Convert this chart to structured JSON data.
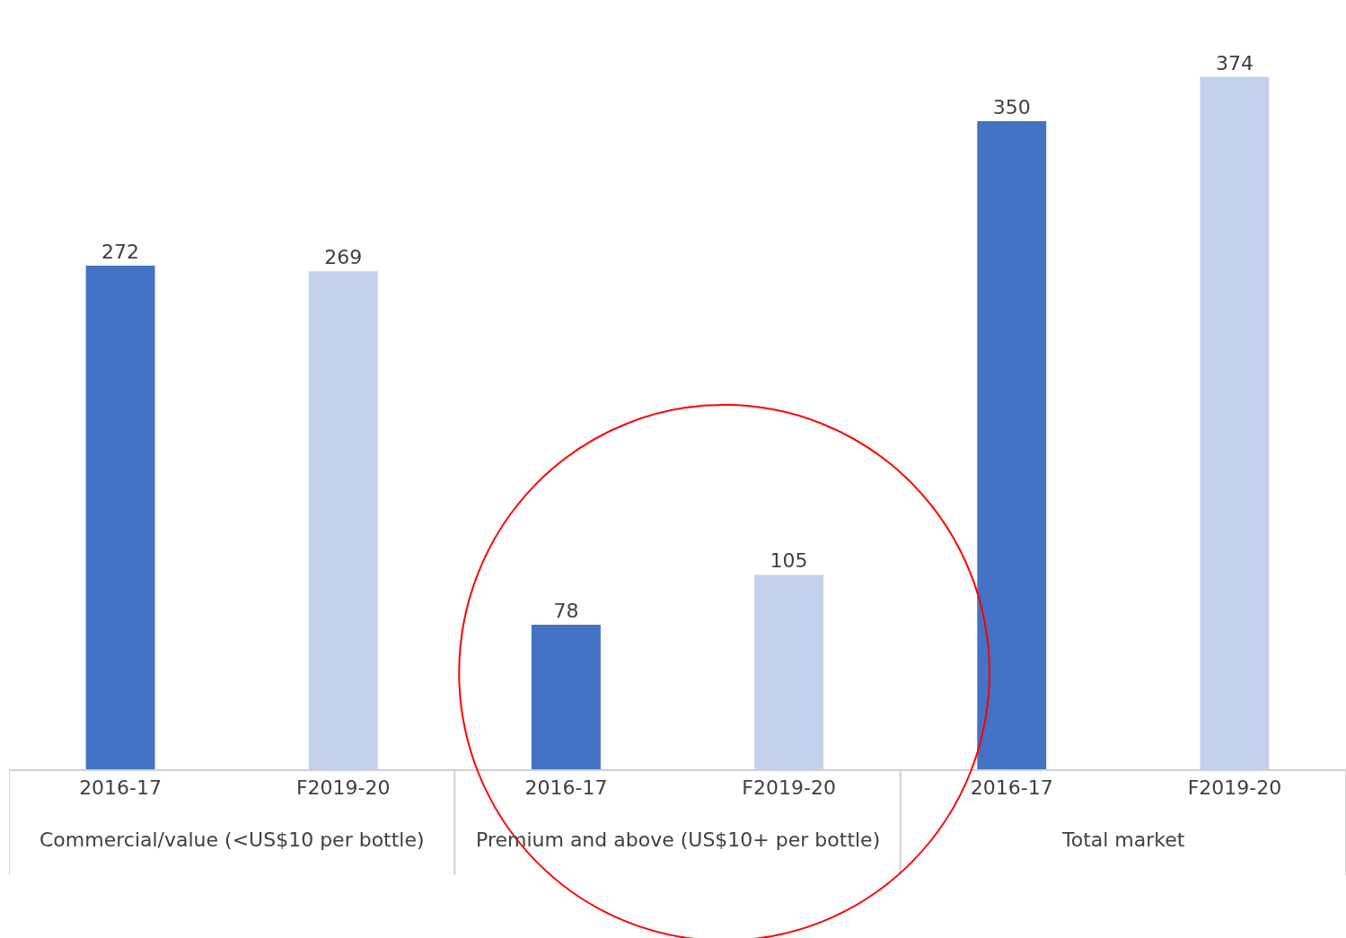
{
  "chart_data": {
    "type": "bar",
    "categories": [
      "2016-17",
      "F2019-20",
      "2016-17",
      "F2019-20",
      "2016-17",
      "F2019-20"
    ],
    "values": [
      272,
      269,
      78,
      105,
      350,
      374
    ],
    "colors": [
      "#4472c4",
      "#c3d1ec",
      "#4472c4",
      "#c3d1ec",
      "#4472c4",
      "#c3d1ec"
    ],
    "data_labels": true,
    "annotations": [
      "Commercial/value (<US$10 per bottle)",
      "Premium and above (US$10+ per bottle)",
      "Total market"
    ]
  }
}
